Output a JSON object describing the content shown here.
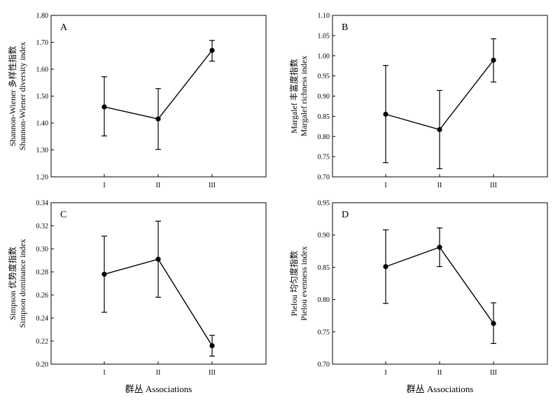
{
  "chart_data": [
    {
      "type": "line",
      "panel_label": "A",
      "categories": [
        "I",
        "II",
        "III"
      ],
      "values": [
        1.46,
        1.415,
        1.67
      ],
      "error_low": [
        1.352,
        1.302,
        1.63
      ],
      "error_high": [
        1.572,
        1.528,
        1.707
      ],
      "ylabel_lines": [
        "Shannon-Wiener 多样性指数",
        "Shannon-Wiener diversity index"
      ],
      "ylim": [
        1.2,
        1.8
      ],
      "yticks": [
        "1.20",
        "1.30",
        "1.40",
        "1.50",
        "1.60",
        "1.70",
        "1.80"
      ],
      "xlabel": ""
    },
    {
      "type": "line",
      "panel_label": "B",
      "categories": [
        "I",
        "II",
        "III"
      ],
      "values": [
        0.855,
        0.817,
        0.989
      ],
      "error_low": [
        0.735,
        0.72,
        0.935
      ],
      "error_high": [
        0.976,
        0.914,
        1.042
      ],
      "ylabel_lines": [
        "Margalef 丰富度指数",
        "Margalef richness index"
      ],
      "ylim": [
        0.7,
        1.1
      ],
      "yticks": [
        "0.70",
        "0.75",
        "0.80",
        "0.85",
        "0.90",
        "0.95",
        "1.00",
        "1.05",
        "1.10"
      ],
      "xlabel": ""
    },
    {
      "type": "line",
      "panel_label": "C",
      "categories": [
        "I",
        "II",
        "III"
      ],
      "values": [
        0.278,
        0.291,
        0.216
      ],
      "error_low": [
        0.245,
        0.258,
        0.207
      ],
      "error_high": [
        0.311,
        0.324,
        0.225
      ],
      "ylabel_lines": [
        "Simpson 优势度指数",
        "Simpson dominance index"
      ],
      "ylim": [
        0.2,
        0.34
      ],
      "yticks": [
        "0.20",
        "0.22",
        "0.24",
        "0.26",
        "0.28",
        "0.30",
        "0.32",
        "0.34"
      ],
      "xlabel": "群丛  Associations"
    },
    {
      "type": "line",
      "panel_label": "D",
      "categories": [
        "I",
        "II",
        "III"
      ],
      "values": [
        0.851,
        0.881,
        0.763
      ],
      "error_low": [
        0.794,
        0.851,
        0.732
      ],
      "error_high": [
        0.908,
        0.911,
        0.795
      ],
      "ylabel_lines": [
        "Pielou 均匀度指数",
        "Pielou evenness index"
      ],
      "ylim": [
        0.7,
        0.95
      ],
      "yticks": [
        "0.70",
        "0.75",
        "0.80",
        "0.85",
        "0.90",
        "0.95"
      ],
      "xlabel": "群丛  Associations"
    }
  ]
}
